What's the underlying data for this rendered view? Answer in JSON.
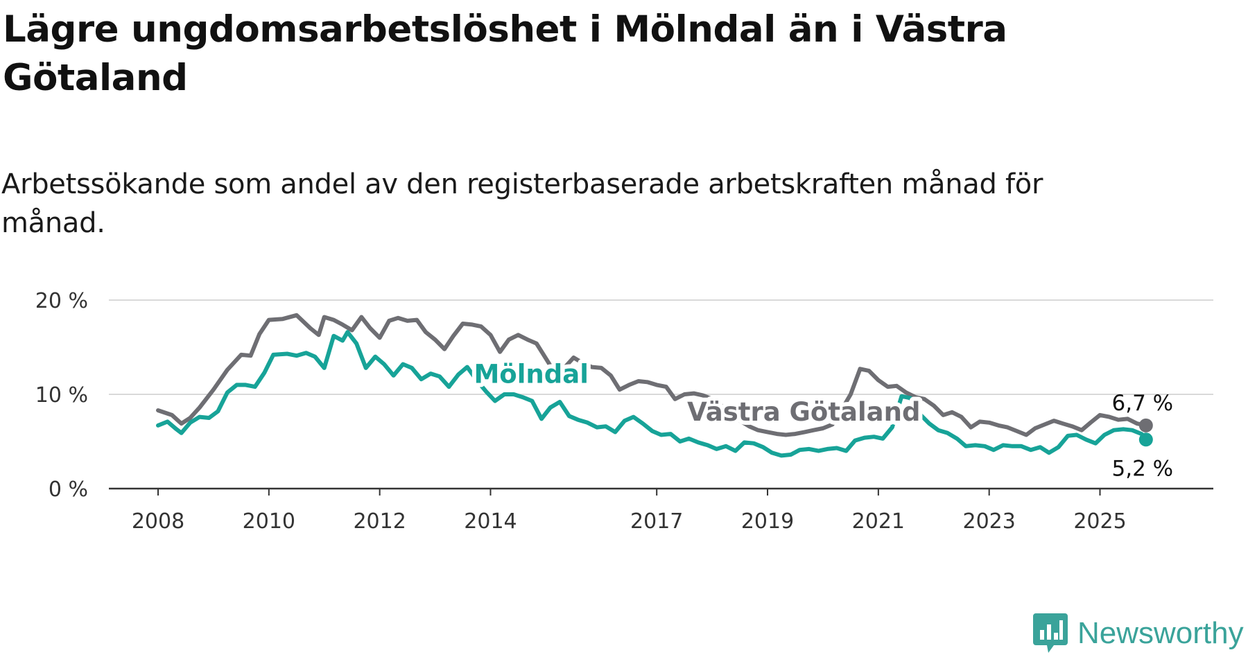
{
  "title": "Lägre ungdomsarbetslöshet i Mölndal än i Västra Götaland",
  "subtitle": "Arbetssökande som andel av den registerbaserade arbetskraften månad för månad.",
  "brand": {
    "name": "Newsworthy",
    "icon": "newsworthy-chart-bubble-icon",
    "color": "#3aa39a"
  },
  "chart_data": {
    "type": "line",
    "title": "Lägre ungdomsarbetslöshet i Mölndal än i Västra Götaland",
    "subtitle": "Arbetssökande som andel av den registerbaserade arbetskraften månad för månad.",
    "xlabel": "",
    "ylabel": "",
    "xlim": [
      2008.0,
      2026.17
    ],
    "ylim": [
      0,
      20
    ],
    "grid": true,
    "y_ticks": [
      {
        "value": 0,
        "label": "0 %"
      },
      {
        "value": 10,
        "label": "10 %"
      },
      {
        "value": 20,
        "label": "20 %"
      }
    ],
    "x_ticks": [
      {
        "value": 2008,
        "label": "2008"
      },
      {
        "value": 2010,
        "label": "2010"
      },
      {
        "value": 2012,
        "label": "2012"
      },
      {
        "value": 2014,
        "label": "2014"
      },
      {
        "value": 2017,
        "label": "2017"
      },
      {
        "value": 2019,
        "label": "2019"
      },
      {
        "value": 2021,
        "label": "2021"
      },
      {
        "value": 2023,
        "label": "2023"
      },
      {
        "value": 2025,
        "label": "2025"
      }
    ],
    "series": [
      {
        "name": "Västra Götaland",
        "color": "#6e6e73",
        "end_label": "6,7 %",
        "label_at": [
          2017.55,
          7.2
        ],
        "points": [
          [
            2008.0,
            8.3
          ],
          [
            2008.25,
            7.8
          ],
          [
            2008.42,
            6.9
          ],
          [
            2008.58,
            7.5
          ],
          [
            2008.75,
            8.6
          ],
          [
            2009.0,
            10.5
          ],
          [
            2009.25,
            12.6
          ],
          [
            2009.5,
            14.2
          ],
          [
            2009.67,
            14.1
          ],
          [
            2009.83,
            16.4
          ],
          [
            2010.0,
            17.9
          ],
          [
            2010.25,
            18.0
          ],
          [
            2010.5,
            18.4
          ],
          [
            2010.75,
            17.0
          ],
          [
            2010.9,
            16.3
          ],
          [
            2011.0,
            18.2
          ],
          [
            2011.17,
            17.9
          ],
          [
            2011.33,
            17.4
          ],
          [
            2011.5,
            16.8
          ],
          [
            2011.67,
            18.2
          ],
          [
            2011.83,
            17.0
          ],
          [
            2012.0,
            16.0
          ],
          [
            2012.17,
            17.8
          ],
          [
            2012.33,
            18.1
          ],
          [
            2012.5,
            17.8
          ],
          [
            2012.67,
            17.9
          ],
          [
            2012.83,
            16.6
          ],
          [
            2013.0,
            15.8
          ],
          [
            2013.17,
            14.8
          ],
          [
            2013.33,
            16.2
          ],
          [
            2013.5,
            17.5
          ],
          [
            2013.67,
            17.4
          ],
          [
            2013.83,
            17.2
          ],
          [
            2014.0,
            16.3
          ],
          [
            2014.17,
            14.5
          ],
          [
            2014.33,
            15.8
          ],
          [
            2014.5,
            16.3
          ],
          [
            2014.67,
            15.8
          ],
          [
            2014.83,
            15.4
          ],
          [
            2015.0,
            13.8
          ],
          [
            2015.17,
            12.2
          ],
          [
            2015.33,
            12.8
          ],
          [
            2015.5,
            13.9
          ],
          [
            2015.67,
            13.3
          ],
          [
            2015.83,
            12.9
          ],
          [
            2016.0,
            12.8
          ],
          [
            2016.17,
            12.0
          ],
          [
            2016.33,
            10.5
          ],
          [
            2016.5,
            11.0
          ],
          [
            2016.67,
            11.4
          ],
          [
            2016.83,
            11.3
          ],
          [
            2017.0,
            11.0
          ],
          [
            2017.17,
            10.8
          ],
          [
            2017.33,
            9.5
          ],
          [
            2017.5,
            10.0
          ],
          [
            2017.67,
            10.1
          ],
          [
            2017.83,
            9.9
          ],
          [
            2018.0,
            9.5
          ],
          [
            2018.17,
            8.8
          ],
          [
            2018.33,
            7.9
          ],
          [
            2018.5,
            7.2
          ],
          [
            2018.67,
            6.6
          ],
          [
            2018.83,
            6.2
          ],
          [
            2019.0,
            6.0
          ],
          [
            2019.17,
            5.8
          ],
          [
            2019.33,
            5.7
          ],
          [
            2019.5,
            5.8
          ],
          [
            2019.67,
            6.0
          ],
          [
            2019.83,
            6.2
          ],
          [
            2020.0,
            6.4
          ],
          [
            2020.17,
            6.8
          ],
          [
            2020.33,
            8.3
          ],
          [
            2020.5,
            10.0
          ],
          [
            2020.67,
            12.7
          ],
          [
            2020.83,
            12.5
          ],
          [
            2021.0,
            11.5
          ],
          [
            2021.17,
            10.8
          ],
          [
            2021.33,
            10.9
          ],
          [
            2021.5,
            10.2
          ],
          [
            2021.67,
            9.7
          ],
          [
            2021.83,
            9.5
          ],
          [
            2022.0,
            8.8
          ],
          [
            2022.17,
            7.8
          ],
          [
            2022.33,
            8.1
          ],
          [
            2022.5,
            7.6
          ],
          [
            2022.67,
            6.5
          ],
          [
            2022.83,
            7.1
          ],
          [
            2023.0,
            7.0
          ],
          [
            2023.17,
            6.7
          ],
          [
            2023.33,
            6.5
          ],
          [
            2023.5,
            6.1
          ],
          [
            2023.67,
            5.7
          ],
          [
            2023.83,
            6.4
          ],
          [
            2024.0,
            6.8
          ],
          [
            2024.17,
            7.2
          ],
          [
            2024.33,
            6.9
          ],
          [
            2024.5,
            6.6
          ],
          [
            2024.67,
            6.2
          ],
          [
            2024.83,
            7.0
          ],
          [
            2025.0,
            7.8
          ],
          [
            2025.17,
            7.6
          ],
          [
            2025.33,
            7.3
          ],
          [
            2025.5,
            7.4
          ],
          [
            2025.67,
            6.9
          ],
          [
            2025.83,
            6.7
          ]
        ]
      },
      {
        "name": "Mölndal",
        "color": "#17a398",
        "end_label": "5,2 %",
        "label_at": [
          2013.7,
          11.2
        ],
        "points": [
          [
            2008.0,
            6.7
          ],
          [
            2008.17,
            7.1
          ],
          [
            2008.33,
            6.3
          ],
          [
            2008.42,
            5.9
          ],
          [
            2008.58,
            7.0
          ],
          [
            2008.75,
            7.6
          ],
          [
            2008.92,
            7.5
          ],
          [
            2009.08,
            8.2
          ],
          [
            2009.25,
            10.2
          ],
          [
            2009.42,
            11.0
          ],
          [
            2009.58,
            11.0
          ],
          [
            2009.75,
            10.8
          ],
          [
            2009.92,
            12.3
          ],
          [
            2010.08,
            14.2
          ],
          [
            2010.33,
            14.3
          ],
          [
            2010.5,
            14.1
          ],
          [
            2010.67,
            14.4
          ],
          [
            2010.83,
            14.0
          ],
          [
            2011.0,
            12.8
          ],
          [
            2011.17,
            16.2
          ],
          [
            2011.33,
            15.7
          ],
          [
            2011.42,
            16.6
          ],
          [
            2011.58,
            15.4
          ],
          [
            2011.75,
            12.8
          ],
          [
            2011.92,
            14.0
          ],
          [
            2012.08,
            13.2
          ],
          [
            2012.25,
            12.0
          ],
          [
            2012.42,
            13.2
          ],
          [
            2012.58,
            12.8
          ],
          [
            2012.75,
            11.6
          ],
          [
            2012.92,
            12.2
          ],
          [
            2013.08,
            11.9
          ],
          [
            2013.25,
            10.8
          ],
          [
            2013.42,
            12.1
          ],
          [
            2013.58,
            12.9
          ],
          [
            2013.75,
            11.5
          ],
          [
            2013.92,
            10.3
          ],
          [
            2014.08,
            9.3
          ],
          [
            2014.25,
            10.0
          ],
          [
            2014.42,
            10.0
          ],
          [
            2014.58,
            9.7
          ],
          [
            2014.75,
            9.3
          ],
          [
            2014.92,
            7.4
          ],
          [
            2015.08,
            8.6
          ],
          [
            2015.25,
            9.2
          ],
          [
            2015.42,
            7.7
          ],
          [
            2015.58,
            7.3
          ],
          [
            2015.75,
            7.0
          ],
          [
            2015.92,
            6.5
          ],
          [
            2016.08,
            6.6
          ],
          [
            2016.25,
            6.0
          ],
          [
            2016.42,
            7.2
          ],
          [
            2016.58,
            7.6
          ],
          [
            2016.75,
            6.9
          ],
          [
            2016.92,
            6.1
          ],
          [
            2017.08,
            5.7
          ],
          [
            2017.25,
            5.8
          ],
          [
            2017.42,
            5.0
          ],
          [
            2017.58,
            5.3
          ],
          [
            2017.75,
            4.9
          ],
          [
            2017.92,
            4.6
          ],
          [
            2018.08,
            4.2
          ],
          [
            2018.25,
            4.5
          ],
          [
            2018.42,
            4.0
          ],
          [
            2018.58,
            4.9
          ],
          [
            2018.75,
            4.8
          ],
          [
            2018.92,
            4.4
          ],
          [
            2019.08,
            3.8
          ],
          [
            2019.25,
            3.5
          ],
          [
            2019.42,
            3.6
          ],
          [
            2019.58,
            4.1
          ],
          [
            2019.75,
            4.2
          ],
          [
            2019.92,
            4.0
          ],
          [
            2020.08,
            4.2
          ],
          [
            2020.25,
            4.3
          ],
          [
            2020.42,
            4.0
          ],
          [
            2020.58,
            5.1
          ],
          [
            2020.75,
            5.4
          ],
          [
            2020.92,
            5.5
          ],
          [
            2021.08,
            5.3
          ],
          [
            2021.25,
            6.5
          ],
          [
            2021.42,
            9.8
          ],
          [
            2021.58,
            9.6
          ],
          [
            2021.75,
            7.9
          ],
          [
            2021.92,
            6.9
          ],
          [
            2022.08,
            6.2
          ],
          [
            2022.25,
            5.9
          ],
          [
            2022.42,
            5.3
          ],
          [
            2022.58,
            4.5
          ],
          [
            2022.75,
            4.6
          ],
          [
            2022.92,
            4.5
          ],
          [
            2023.08,
            4.1
          ],
          [
            2023.25,
            4.6
          ],
          [
            2023.42,
            4.5
          ],
          [
            2023.58,
            4.5
          ],
          [
            2023.75,
            4.1
          ],
          [
            2023.92,
            4.4
          ],
          [
            2024.08,
            3.8
          ],
          [
            2024.25,
            4.4
          ],
          [
            2024.42,
            5.6
          ],
          [
            2024.58,
            5.7
          ],
          [
            2024.75,
            5.2
          ],
          [
            2024.92,
            4.8
          ],
          [
            2025.08,
            5.7
          ],
          [
            2025.25,
            6.2
          ],
          [
            2025.42,
            6.3
          ],
          [
            2025.58,
            6.2
          ],
          [
            2025.75,
            5.8
          ],
          [
            2025.83,
            5.2
          ]
        ]
      }
    ]
  }
}
